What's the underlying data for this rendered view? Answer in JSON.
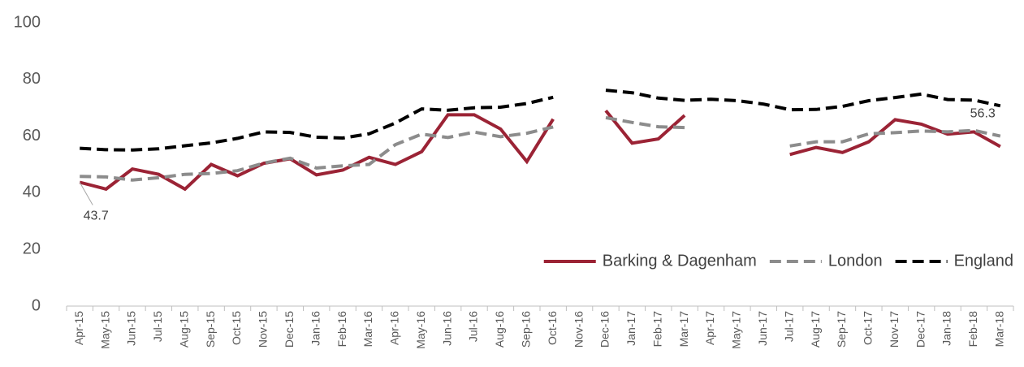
{
  "chart_data": {
    "type": "line",
    "categories": [
      "Apr-15",
      "May-15",
      "Jun-15",
      "Jul-15",
      "Aug-15",
      "Sep-15",
      "Oct-15",
      "Nov-15",
      "Dec-15",
      "Jan-16",
      "Feb-16",
      "Mar-16",
      "Apr-16",
      "May-16",
      "Jun-16",
      "Jul-16",
      "Aug-16",
      "Sep-16",
      "Oct-16",
      "Nov-16",
      "Dec-16",
      "Jan-17",
      "Feb-17",
      "Mar-17",
      "Apr-17",
      "May-17",
      "Jun-17",
      "Jul-17",
      "Aug-17",
      "Sep-17",
      "Oct-17",
      "Nov-17",
      "Dec-17",
      "Jan-18",
      "Feb-18",
      "Mar-18"
    ],
    "series": [
      {
        "name": "Barking & Dagenham",
        "color": "#9b2335",
        "style": "solid",
        "values": [
          43.7,
          41.3,
          48.4,
          46.5,
          41.3,
          50,
          46,
          50.4,
          52,
          46.3,
          48,
          52.5,
          50,
          54.5,
          67.5,
          67.5,
          62.5,
          51,
          66,
          null,
          69,
          57.5,
          59,
          67.3,
          null,
          null,
          null,
          53.5,
          56,
          54.2,
          58,
          65.8,
          64.2,
          60.7,
          61.5,
          56.3
        ],
        "value_labels": [
          "43.7",
          null,
          null,
          null,
          null,
          null,
          null,
          null,
          null,
          null,
          null,
          null,
          null,
          null,
          null,
          null,
          null,
          null,
          null,
          null,
          null,
          null,
          null,
          null,
          null,
          null,
          null,
          null,
          null,
          null,
          null,
          null,
          null,
          null,
          null,
          "56.3"
        ]
      },
      {
        "name": "London",
        "color": "#8c8c8c",
        "style": "dashed",
        "values": [
          45.8,
          45.6,
          44.5,
          45.3,
          46.5,
          46.8,
          47.8,
          50.5,
          52.2,
          48.7,
          49.5,
          50,
          57,
          60.7,
          59.5,
          61.4,
          59.8,
          61,
          63.2,
          null,
          66.5,
          64.8,
          63.3,
          63,
          null,
          null,
          null,
          56.5,
          58,
          58,
          60.8,
          61.2,
          61.8,
          61.5,
          62,
          60
        ]
      },
      {
        "name": "England",
        "color": "#000000",
        "style": "dashed",
        "values": [
          55.7,
          55.2,
          55.1,
          55.5,
          56.6,
          57.6,
          59.2,
          61.5,
          61.3,
          59.6,
          59.3,
          60.8,
          64.6,
          69.6,
          69.1,
          70,
          70.2,
          71.5,
          73.7,
          null,
          76.2,
          75.3,
          73.4,
          72.6,
          73,
          72.5,
          71.3,
          69.3,
          69.4,
          70.5,
          72.5,
          73.6,
          74.8,
          72.9,
          72.7,
          70.7
        ]
      }
    ],
    "ylim": [
      0,
      100
    ],
    "yticks": [
      0,
      20,
      40,
      60,
      80,
      100
    ],
    "grid": false,
    "legend": "bottom-right"
  }
}
